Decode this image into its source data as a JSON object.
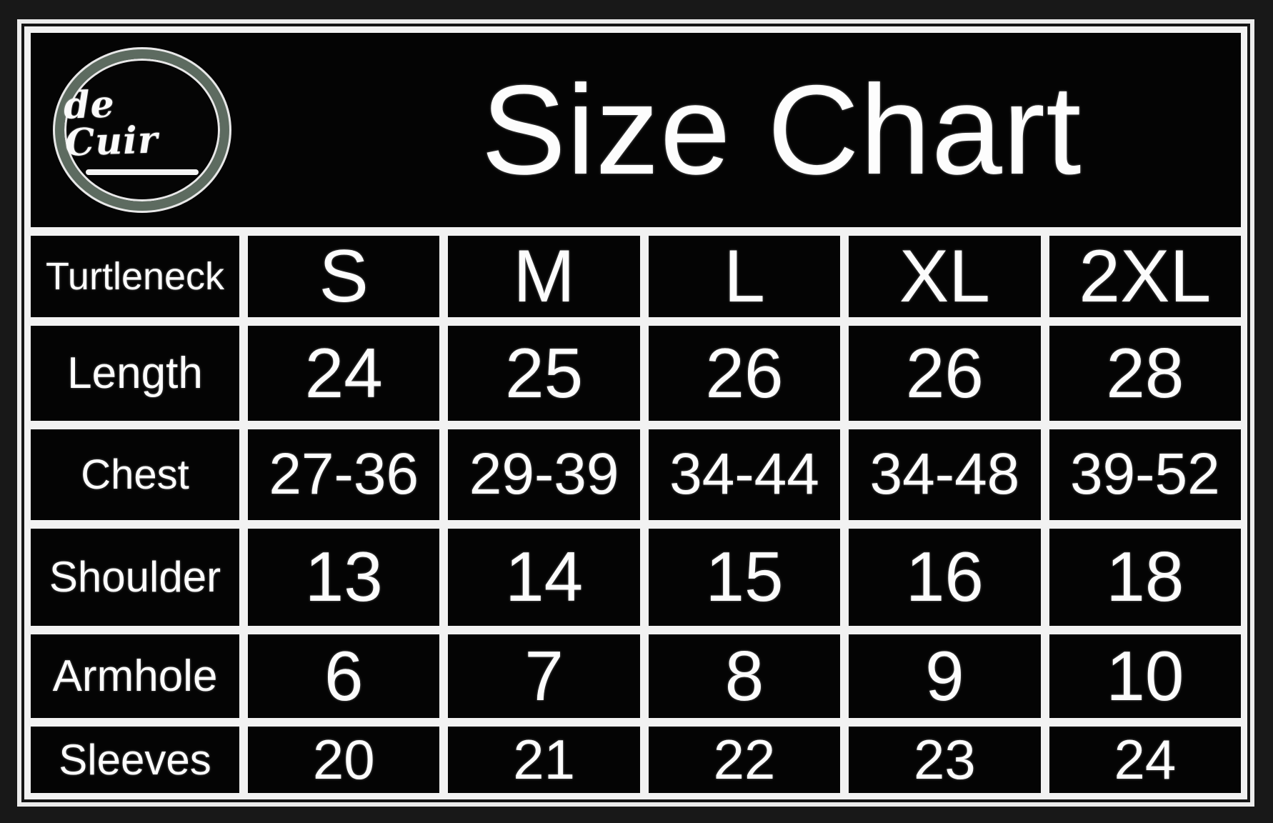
{
  "brand": {
    "logo_text": "de Cuir"
  },
  "header": {
    "title": "Size Chart"
  },
  "chart_data": {
    "type": "table",
    "title": "Size Chart",
    "columns": [
      "Turtleneck",
      "S",
      "M",
      "L",
      "XL",
      "2XL"
    ],
    "rows": [
      [
        "Length",
        "24",
        "25",
        "26",
        "26",
        "28"
      ],
      [
        "Chest",
        "27-36",
        "29-39",
        "34-44",
        "34-48",
        "39-52"
      ],
      [
        "Shoulder",
        "13",
        "14",
        "15",
        "16",
        "18"
      ],
      [
        "Armhole",
        "6",
        "7",
        "8",
        "9",
        "10"
      ],
      [
        "Sleeves",
        "20",
        "21",
        "22",
        "23",
        "24"
      ]
    ]
  },
  "colors": {
    "page_background": "#181818",
    "card_background": "#040404",
    "grid_line": "#f2f2f2",
    "text": "#fcfcfc",
    "logo_ring": "#5d6b60"
  }
}
